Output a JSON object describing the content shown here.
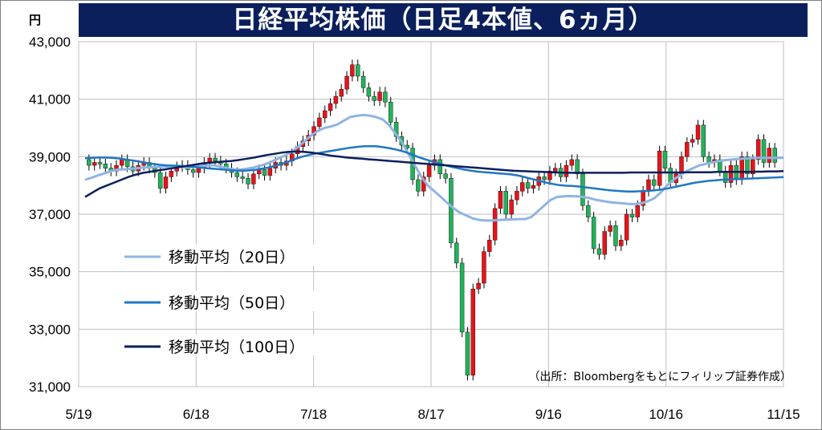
{
  "title": "日経平均株価（日足4本値、6ヵ月）",
  "y_unit": "円",
  "source": "（出所：Bloombergをもとにフィリップ証券作成）",
  "colors": {
    "title_bg": "#0a1f5c",
    "up": "#e8131b",
    "down": "#22b35a",
    "ma20": "#8fb4e3",
    "ma50": "#1f77c4",
    "ma100": "#0a1f5c",
    "grid": "#bfbfbf"
  },
  "chart_data": {
    "type": "line",
    "candles_count": 127,
    "xlabel": "",
    "ylabel": "円",
    "ylim": [
      31000,
      43000
    ],
    "yticks": [
      31000,
      33000,
      35000,
      37000,
      39000,
      41000,
      43000
    ],
    "ytick_labels": [
      "31,000",
      "33,000",
      "35,000",
      "37,000",
      "39,000",
      "41,000",
      "43,000"
    ],
    "xtick_labels": [
      "5/19",
      "6/18",
      "7/18",
      "8/17",
      "9/16",
      "10/16",
      "11/15"
    ],
    "xtick_index": [
      0,
      30,
      60,
      90,
      120,
      150,
      180
    ],
    "grid": true,
    "legend_placement": "left-middle",
    "series": [
      {
        "name": "移動平均（20日）",
        "color": "#8fb4e3",
        "values": [
          38200,
          38270,
          38350,
          38420,
          38500,
          38550,
          38560,
          38580,
          38600,
          38620,
          38630,
          38640,
          38650,
          38660,
          38650,
          38640,
          38630,
          38650,
          38680,
          38700,
          38700,
          38650,
          38600,
          38560,
          38550,
          38580,
          38620,
          38680,
          38750,
          38850,
          38950,
          39050,
          39180,
          39350,
          39550,
          39750,
          39900,
          40000,
          40050,
          40120,
          40250,
          40380,
          40420,
          40450,
          40430,
          40380,
          40300,
          40100,
          39800,
          39500,
          39100,
          38700,
          38300,
          38000,
          37800,
          37600,
          37400,
          37200,
          37050,
          36950,
          36850,
          36800,
          36780,
          36780,
          36800,
          36810,
          36820,
          36830,
          36830,
          36900,
          37100,
          37300,
          37500,
          37600,
          37620,
          37630,
          37620,
          37600,
          37560,
          37500,
          37460,
          37420,
          37400,
          37380,
          37360,
          37350,
          37380,
          37450,
          37550,
          37750,
          38000,
          38200,
          38350,
          38500,
          38600,
          38700,
          38750,
          38800,
          38850,
          38880,
          38900,
          38920,
          38940,
          38950,
          38960,
          38960,
          38960,
          38960,
          38960
        ]
      },
      {
        "name": "移動平均（50日）",
        "color": "#1f77c4",
        "values": [
          38950,
          38960,
          38970,
          38970,
          38960,
          38940,
          38900,
          38870,
          38830,
          38790,
          38750,
          38720,
          38700,
          38690,
          38680,
          38670,
          38650,
          38620,
          38600,
          38580,
          38560,
          38540,
          38520,
          38510,
          38520,
          38540,
          38580,
          38620,
          38680,
          38750,
          38830,
          38920,
          39000,
          39060,
          39110,
          39150,
          39190,
          39230,
          39270,
          39310,
          39340,
          39360,
          39370,
          39360,
          39330,
          39290,
          39240,
          39180,
          39100,
          39000,
          38920,
          38850,
          38780,
          38710,
          38650,
          38600,
          38550,
          38510,
          38480,
          38460,
          38440,
          38420,
          38400,
          38380,
          38340,
          38280,
          38220,
          38160,
          38100,
          38050,
          38010,
          37990,
          37980,
          37960,
          37930,
          37900,
          37870,
          37840,
          37820,
          37800,
          37790,
          37790,
          37800,
          37810,
          37830,
          37860,
          37900,
          37950,
          38000,
          38050,
          38100,
          38130,
          38160,
          38180,
          38200,
          38210,
          38220,
          38230,
          38240,
          38250,
          38260,
          38270,
          38280,
          38290
        ]
      },
      {
        "name": "移動平均（100日）",
        "color": "#0a1f5c",
        "values": [
          37600,
          37750,
          37900,
          38000,
          38100,
          38200,
          38300,
          38380,
          38440,
          38480,
          38520,
          38560,
          38600,
          38640,
          38680,
          38720,
          38760,
          38790,
          38810,
          38830,
          38850,
          38880,
          38920,
          38960,
          39010,
          39060,
          39100,
          39140,
          39170,
          39180,
          39170,
          39150,
          39110,
          39070,
          39030,
          39000,
          38970,
          38950,
          38930,
          38910,
          38890,
          38870,
          38850,
          38830,
          38810,
          38790,
          38770,
          38750,
          38730,
          38710,
          38690,
          38670,
          38650,
          38630,
          38610,
          38590,
          38570,
          38550,
          38530,
          38510,
          38500,
          38490,
          38480,
          38470,
          38460,
          38450,
          38440,
          38440,
          38440,
          38440,
          38440,
          38440,
          38440,
          38440,
          38440,
          38450,
          38450,
          38450,
          38450,
          38450,
          38450,
          38450,
          38450,
          38460,
          38460,
          38460,
          38460,
          38470,
          38470,
          38470,
          38470,
          38470,
          38480,
          38480,
          38490,
          38490,
          38500
        ]
      },
      {
        "name": "4本値",
        "color": "#e8131b",
        "values": [
          38900,
          38700,
          38800,
          38750,
          38600,
          38500,
          38700,
          38900,
          38650,
          38500,
          38700,
          38800,
          38600,
          38450,
          37900,
          38300,
          38500,
          38650,
          38700,
          38550,
          38450,
          38600,
          38800,
          38950,
          38850,
          38750,
          38600,
          38450,
          38300,
          38250,
          38050,
          38400,
          38550,
          38350,
          38600,
          38800,
          38700,
          38850,
          39100,
          39350,
          39550,
          39750,
          40050,
          40350,
          40600,
          40850,
          41100,
          41350,
          41800,
          42200,
          41800,
          41400,
          41100,
          40950,
          41250,
          40900,
          40200,
          39700,
          39400,
          39300,
          38200,
          37800,
          38300,
          38700,
          38900,
          38400,
          38250,
          36000,
          35300,
          32900,
          31400,
          34400,
          34600,
          35700,
          36100,
          37200,
          37800,
          37000,
          37500,
          37800,
          38100,
          37900,
          38000,
          38300,
          38200,
          38500,
          38600,
          38300,
          38700,
          38900,
          38400,
          37300,
          36900,
          35800,
          35600,
          36400,
          36600,
          35900,
          36100,
          37000,
          36900,
          37300,
          37800,
          38200,
          38000,
          39200,
          38600,
          38100,
          38400,
          39000,
          39500,
          39600,
          40100,
          39000,
          38800,
          38900,
          38500,
          38100,
          38700,
          38200,
          39000,
          38400,
          38900,
          39600,
          38800,
          39300,
          38800
        ]
      }
    ]
  }
}
